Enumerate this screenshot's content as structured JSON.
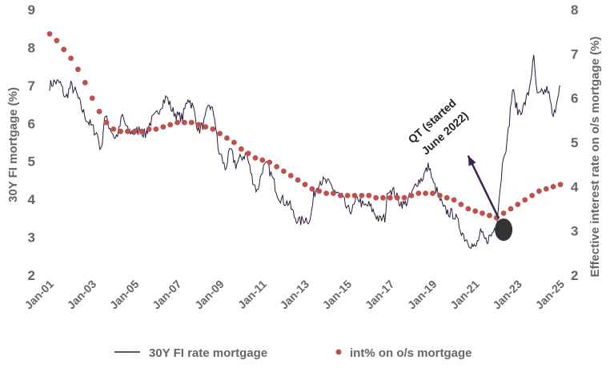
{
  "chart_data": {
    "type": "line",
    "title": "",
    "colors": {
      "rate_line": "#2b1a3a",
      "dots": "#c0504d",
      "marker": "#333333",
      "arrow": "#3d2450",
      "tick_text": "#666666"
    },
    "x_tick_labels": [
      "Jan-01",
      "Jan-03",
      "Jan-05",
      "Jan-07",
      "Jan-09",
      "Jan-11",
      "Jan-13",
      "Jan-15",
      "Jan-17",
      "Jan-19",
      "Jan-21",
      "Jan-23",
      "Jan-25"
    ],
    "x_range": [
      "2001-01",
      "2025-01"
    ],
    "y_left": {
      "label": "30Y FI mortgage (%)",
      "lim": [
        2,
        9
      ],
      "ticks": [
        "2",
        "3",
        "4",
        "5",
        "6",
        "7",
        "8",
        "9"
      ]
    },
    "y_right": {
      "label": "Effective interest rate on o/s mortgage (%)",
      "lim": [
        2,
        8
      ],
      "ticks": [
        "2",
        "3",
        "4",
        "5",
        "6",
        "7",
        "8"
      ]
    },
    "grid": false,
    "legend_position": "bottom",
    "series": [
      {
        "name": "30Y FI rate mortgage",
        "axis": "left",
        "style": "line",
        "points": [
          [
            "2001-01",
            7.0
          ],
          [
            "2001-04",
            7.1
          ],
          [
            "2001-07",
            7.05
          ],
          [
            "2001-10",
            6.65
          ],
          [
            "2002-01",
            7.0
          ],
          [
            "2002-04",
            6.8
          ],
          [
            "2002-07",
            6.4
          ],
          [
            "2002-10",
            6.1
          ],
          [
            "2003-01",
            5.9
          ],
          [
            "2003-04",
            5.7
          ],
          [
            "2003-06",
            5.25
          ],
          [
            "2003-08",
            6.2
          ],
          [
            "2003-11",
            5.9
          ],
          [
            "2004-02",
            5.6
          ],
          [
            "2004-04",
            5.8
          ],
          [
            "2004-06",
            6.2
          ],
          [
            "2004-09",
            5.8
          ],
          [
            "2005-01",
            5.75
          ],
          [
            "2005-04",
            5.85
          ],
          [
            "2005-07",
            5.7
          ],
          [
            "2005-10",
            6.05
          ],
          [
            "2006-01",
            6.2
          ],
          [
            "2006-04",
            6.5
          ],
          [
            "2006-07",
            6.7
          ],
          [
            "2006-10",
            6.35
          ],
          [
            "2007-01",
            6.2
          ],
          [
            "2007-04",
            6.15
          ],
          [
            "2007-07",
            6.7
          ],
          [
            "2007-10",
            6.4
          ],
          [
            "2008-01",
            5.8
          ],
          [
            "2008-04",
            6.0
          ],
          [
            "2008-07",
            6.5
          ],
          [
            "2008-10",
            6.2
          ],
          [
            "2008-12",
            5.3
          ],
          [
            "2009-02",
            5.1
          ],
          [
            "2009-04",
            4.8
          ],
          [
            "2009-07",
            5.3
          ],
          [
            "2009-10",
            4.9
          ],
          [
            "2010-01",
            5.1
          ],
          [
            "2010-04",
            5.2
          ],
          [
            "2010-07",
            4.6
          ],
          [
            "2010-10",
            4.2
          ],
          [
            "2011-01",
            4.8
          ],
          [
            "2011-04",
            4.9
          ],
          [
            "2011-07",
            4.5
          ],
          [
            "2011-10",
            4.1
          ],
          [
            "2012-01",
            3.95
          ],
          [
            "2012-04",
            3.9
          ],
          [
            "2012-07",
            3.55
          ],
          [
            "2012-10",
            3.4
          ],
          [
            "2013-01",
            3.5
          ],
          [
            "2013-04",
            3.45
          ],
          [
            "2013-06",
            4.1
          ],
          [
            "2013-09",
            4.5
          ],
          [
            "2014-01",
            4.45
          ],
          [
            "2014-04",
            4.35
          ],
          [
            "2014-07",
            4.15
          ],
          [
            "2014-10",
            4.05
          ],
          [
            "2015-01",
            3.7
          ],
          [
            "2015-04",
            3.75
          ],
          [
            "2015-07",
            4.05
          ],
          [
            "2015-10",
            3.8
          ],
          [
            "2016-01",
            3.85
          ],
          [
            "2016-04",
            3.65
          ],
          [
            "2016-07",
            3.45
          ],
          [
            "2016-10",
            3.5
          ],
          [
            "2016-12",
            4.3
          ],
          [
            "2017-03",
            4.2
          ],
          [
            "2017-06",
            3.95
          ],
          [
            "2017-09",
            3.85
          ],
          [
            "2018-01",
            4.1
          ],
          [
            "2018-04",
            4.45
          ],
          [
            "2018-07",
            4.55
          ],
          [
            "2018-11",
            4.9
          ],
          [
            "2019-01",
            4.45
          ],
          [
            "2019-04",
            4.15
          ],
          [
            "2019-07",
            3.75
          ],
          [
            "2019-10",
            3.65
          ],
          [
            "2020-01",
            3.6
          ],
          [
            "2020-04",
            3.3
          ],
          [
            "2020-07",
            3.0
          ],
          [
            "2020-10",
            2.85
          ],
          [
            "2021-01",
            2.7
          ],
          [
            "2021-04",
            3.1
          ],
          [
            "2021-07",
            2.9
          ],
          [
            "2021-10",
            3.05
          ],
          [
            "2022-01",
            3.35
          ],
          [
            "2022-03",
            4.3
          ],
          [
            "2022-05",
            5.2
          ],
          [
            "2022-07",
            5.5
          ],
          [
            "2022-10",
            6.9
          ],
          [
            "2023-01",
            6.3
          ],
          [
            "2023-04",
            6.4
          ],
          [
            "2023-07",
            6.8
          ],
          [
            "2023-10",
            7.7
          ],
          [
            "2023-12",
            6.7
          ],
          [
            "2024-03",
            6.8
          ],
          [
            "2024-06",
            6.9
          ],
          [
            "2024-09",
            6.1
          ],
          [
            "2024-12",
            6.9
          ],
          [
            "2025-01",
            7.0
          ]
        ]
      },
      {
        "name": "int% on o/s mortgage",
        "axis": "right",
        "style": "dots",
        "points": [
          [
            "2001-01",
            7.45
          ],
          [
            "2001-05",
            7.3
          ],
          [
            "2001-09",
            7.1
          ],
          [
            "2002-01",
            6.9
          ],
          [
            "2002-05",
            6.65
          ],
          [
            "2002-09",
            6.35
          ],
          [
            "2003-01",
            6.0
          ],
          [
            "2003-05",
            5.7
          ],
          [
            "2003-09",
            5.45
          ],
          [
            "2004-01",
            5.3
          ],
          [
            "2004-05",
            5.25
          ],
          [
            "2004-09",
            5.25
          ],
          [
            "2005-01",
            5.25
          ],
          [
            "2005-05",
            5.25
          ],
          [
            "2005-09",
            5.3
          ],
          [
            "2006-01",
            5.3
          ],
          [
            "2006-05",
            5.35
          ],
          [
            "2006-09",
            5.4
          ],
          [
            "2007-01",
            5.45
          ],
          [
            "2007-05",
            5.45
          ],
          [
            "2007-09",
            5.45
          ],
          [
            "2008-01",
            5.4
          ],
          [
            "2008-05",
            5.35
          ],
          [
            "2008-09",
            5.3
          ],
          [
            "2009-01",
            5.2
          ],
          [
            "2009-05",
            5.1
          ],
          [
            "2009-09",
            5.0
          ],
          [
            "2010-01",
            4.85
          ],
          [
            "2010-05",
            4.75
          ],
          [
            "2010-09",
            4.65
          ],
          [
            "2011-01",
            4.6
          ],
          [
            "2011-05",
            4.55
          ],
          [
            "2011-09",
            4.45
          ],
          [
            "2012-01",
            4.35
          ],
          [
            "2012-05",
            4.25
          ],
          [
            "2012-09",
            4.15
          ],
          [
            "2013-01",
            4.05
          ],
          [
            "2013-05",
            3.95
          ],
          [
            "2013-09",
            3.9
          ],
          [
            "2014-01",
            3.85
          ],
          [
            "2014-05",
            3.85
          ],
          [
            "2014-09",
            3.8
          ],
          [
            "2015-01",
            3.8
          ],
          [
            "2015-05",
            3.8
          ],
          [
            "2015-09",
            3.8
          ],
          [
            "2016-01",
            3.8
          ],
          [
            "2016-05",
            3.75
          ],
          [
            "2016-09",
            3.75
          ],
          [
            "2017-01",
            3.75
          ],
          [
            "2017-05",
            3.75
          ],
          [
            "2017-09",
            3.75
          ],
          [
            "2018-01",
            3.8
          ],
          [
            "2018-05",
            3.85
          ],
          [
            "2018-09",
            3.85
          ],
          [
            "2019-01",
            3.85
          ],
          [
            "2019-05",
            3.8
          ],
          [
            "2019-09",
            3.75
          ],
          [
            "2020-01",
            3.7
          ],
          [
            "2020-05",
            3.6
          ],
          [
            "2020-09",
            3.5
          ],
          [
            "2021-01",
            3.45
          ],
          [
            "2021-05",
            3.4
          ],
          [
            "2021-09",
            3.35
          ],
          [
            "2022-01",
            3.3
          ],
          [
            "2022-05",
            3.4
          ],
          [
            "2022-09",
            3.5
          ],
          [
            "2023-01",
            3.6
          ],
          [
            "2023-05",
            3.7
          ],
          [
            "2023-09",
            3.8
          ],
          [
            "2024-01",
            3.9
          ],
          [
            "2024-05",
            3.95
          ],
          [
            "2024-09",
            4.0
          ],
          [
            "2025-01",
            4.05
          ]
        ]
      }
    ],
    "annotations": [
      {
        "text_lines": [
          "QT (started",
          "June 2022)"
        ],
        "marker_at": [
          "2022-05",
          3.2
        ],
        "arrow_to": [
          "2020-09",
          5.15
        ]
      }
    ]
  }
}
